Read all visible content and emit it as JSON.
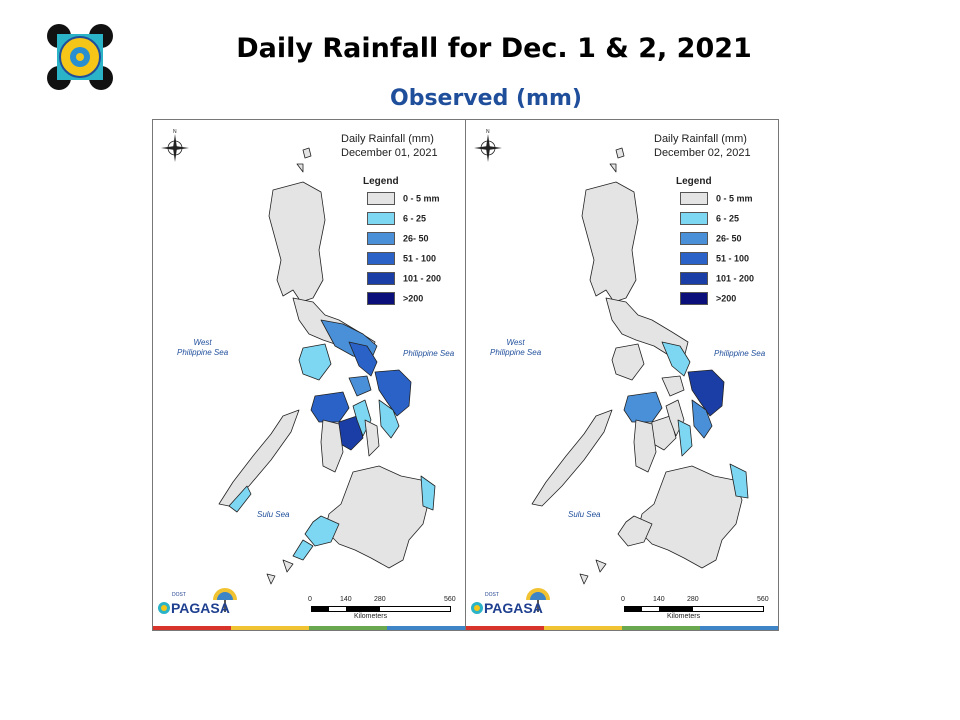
{
  "header": {
    "title": "Daily Rainfall for Dec. 1 & 2, 2021",
    "subtitle": "Observed (mm)"
  },
  "legend": {
    "title": "Legend",
    "items": [
      {
        "label": "0 - 5 mm",
        "color": "#e4e4e4"
      },
      {
        "label": "6 - 25",
        "color": "#7dd6f2"
      },
      {
        "label": "26- 50",
        "color": "#4a90d9"
      },
      {
        "label": "51 - 100",
        "color": "#2a62c8"
      },
      {
        "label": "101 - 200",
        "color": "#1b3ea6"
      },
      {
        "label": ">200",
        "color": "#0a0f7a"
      }
    ]
  },
  "panels": [
    {
      "map_title": "Daily Rainfall (mm)",
      "map_date": "December 01, 2021",
      "seas": {
        "west_line1": "West",
        "west_line2": "Philippine Sea",
        "east": "Philippine Sea",
        "sulu": "Sulu Sea"
      },
      "scale": {
        "ticks": [
          "0",
          "140",
          "280",
          "560"
        ],
        "unit": "Kilometers"
      },
      "logo_text": "PAGASA",
      "logo_small": "DOST"
    },
    {
      "map_title": "Daily Rainfall (mm)",
      "map_date": "December 02, 2021",
      "seas": {
        "west_line1": "West",
        "west_line2": "Philippine Sea",
        "east": "Philippine Sea",
        "sulu": "Sulu Sea"
      },
      "scale": {
        "ticks": [
          "0",
          "140",
          "280",
          "560"
        ],
        "unit": "Kilometers"
      },
      "logo_text": "PAGASA",
      "logo_small": "DOST"
    }
  ],
  "colors": {
    "stripe": [
      "#d9342b",
      "#f1c232",
      "#6aa84f",
      "#3d85c6"
    ],
    "title_blue": "#1f4e9b"
  }
}
